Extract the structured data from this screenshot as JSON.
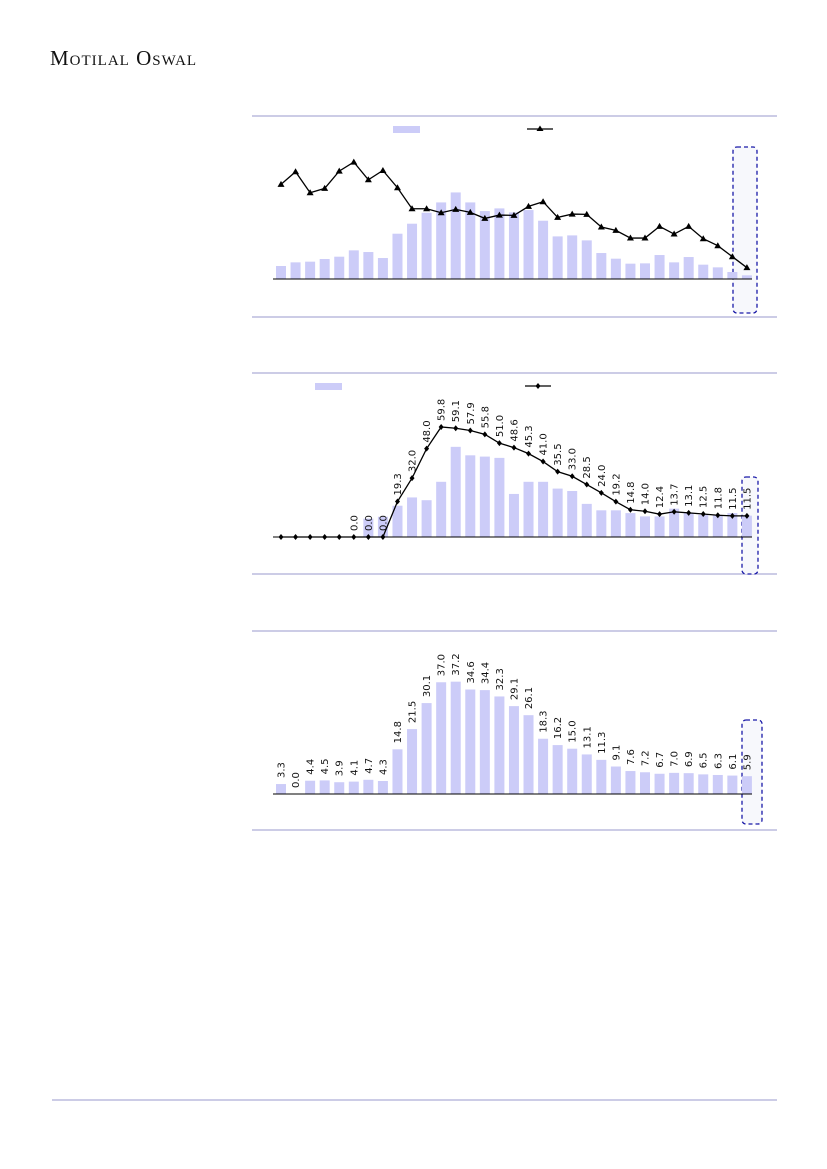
{
  "header": {
    "logo_text": "Motilal Oswal"
  },
  "colors": {
    "bar": "#ccccf8",
    "line": "#000000",
    "rule": "#9999cc",
    "highlight": "#1a1aa8"
  },
  "chart_data": [
    {
      "type": "bar+line",
      "legend": [
        {
          "marker": "bar-swatch"
        },
        {
          "marker": "line-triangle"
        }
      ],
      "bars": [
        3.9,
        5.0,
        5.2,
        6.0,
        6.7,
        8.6,
        8.1,
        6.3,
        13.6,
        16.6,
        19.9,
        23.0,
        26.0,
        23.0,
        20.4,
        21.2,
        20.0,
        20.7,
        17.5,
        12.8,
        13.1,
        11.6,
        7.8,
        6.1,
        4.6,
        4.7,
        7.2,
        5.0,
        6.6,
        4.3,
        3.5,
        2.1,
        1.1
      ],
      "line": [
        28.4,
        32.2,
        25.9,
        27.2,
        32.4,
        35.1,
        29.8,
        32.6,
        27.4,
        21.1,
        21.1,
        19.9,
        20.9,
        20.0,
        18.2,
        19.2,
        19.1,
        21.8,
        23.2,
        18.5,
        19.5,
        19.4,
        15.6,
        14.6,
        12.3,
        12.3,
        15.8,
        13.5,
        15.8,
        12.1,
        10.0,
        6.7,
        3.4
      ],
      "highlight_last": true,
      "grid": false
    },
    {
      "type": "bar+line",
      "legend": [
        {
          "marker": "bar-swatch"
        },
        {
          "marker": "line-diamond"
        }
      ],
      "bars": [
        null,
        null,
        null,
        null,
        null,
        null,
        10,
        11,
        17,
        21.5,
        20,
        30,
        49,
        44.4,
        43.7,
        43,
        23.4,
        30,
        30,
        26.3,
        25,
        18,
        14.5,
        14.5,
        13,
        11.2,
        11.2,
        15.4,
        13,
        12,
        12,
        13,
        11.6
      ],
      "line": [
        0,
        0,
        0,
        0,
        0,
        0,
        0,
        0,
        19.3,
        32.0,
        48.0,
        59.8,
        59.1,
        57.9,
        55.8,
        51.0,
        48.6,
        45.3,
        41.0,
        35.5,
        33.0,
        28.5,
        24.0,
        19.2,
        14.8,
        14.0,
        12.4,
        13.7,
        13.1,
        12.5,
        11.8,
        11.5,
        11.5
      ],
      "line_labels": [
        null,
        null,
        null,
        null,
        null,
        "0.0",
        "0.0",
        "0.0",
        "19.3",
        "32.0",
        "48.0",
        "59.8",
        "59.1",
        "57.9",
        "55.8",
        "51.0",
        "48.6",
        "45.3",
        "41.0",
        "35.5",
        "33.0",
        "28.5",
        "24.0",
        "19.2",
        "14.8",
        "14.0",
        "12.4",
        "13.7",
        "13.1",
        "12.5",
        "11.8",
        "11.5",
        "11.5"
      ],
      "highlight_last": true,
      "grid": false
    },
    {
      "type": "bar",
      "bars": [
        3.3,
        0.0,
        4.4,
        4.5,
        3.9,
        4.1,
        4.7,
        4.3,
        14.8,
        21.5,
        30.1,
        37.0,
        37.2,
        34.6,
        34.4,
        32.3,
        29.1,
        26.1,
        18.3,
        16.2,
        15.0,
        13.1,
        11.3,
        9.1,
        7.6,
        7.2,
        6.7,
        7.0,
        6.9,
        6.5,
        6.3,
        6.1,
        5.9
      ],
      "bar_labels": [
        "3.3",
        "0.0",
        "4.4",
        "4.5",
        "3.9",
        "4.1",
        "4.7",
        "4.3",
        "14.8",
        "21.5",
        "30.1",
        "37.0",
        "37.2",
        "34.6",
        "34.4",
        "32.3",
        "29.1",
        "26.1",
        "18.3",
        "16.2",
        "15.0",
        "13.1",
        "11.3",
        "9.1",
        "7.6",
        "7.2",
        "6.7",
        "7.0",
        "6.9",
        "6.5",
        "6.3",
        "6.1",
        "5.9"
      ],
      "highlight_last": true,
      "grid": false
    }
  ]
}
